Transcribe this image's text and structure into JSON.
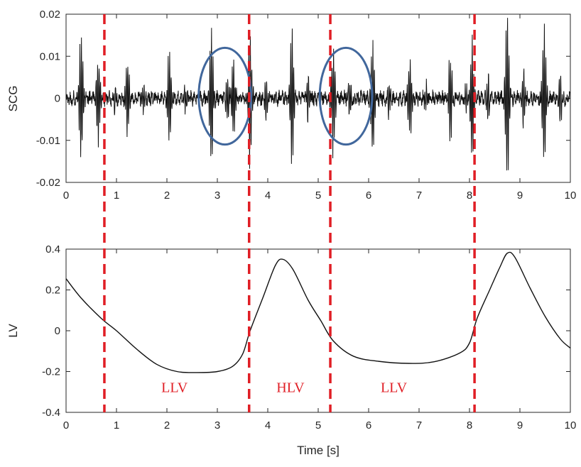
{
  "chart_data": [
    {
      "type": "line",
      "ylabel": "SCG",
      "xlabel": "",
      "xlim": [
        0,
        10
      ],
      "ylim": [
        -0.02,
        0.02
      ],
      "x_ticks": [
        "0",
        "1",
        "2",
        "3",
        "4",
        "5",
        "6",
        "7",
        "8",
        "9",
        "10"
      ],
      "y_ticks": [
        "-0.02",
        "-0.01",
        "0",
        "0.01",
        "0.02"
      ],
      "line_color": "#111111",
      "grid": false,
      "legend": "none",
      "beats": [
        {
          "t": 0.3,
          "amp": 0.015
        },
        {
          "t": 0.65,
          "amp": 0.007
        },
        {
          "t": 1.22,
          "amp": 0.009
        },
        {
          "t": 2.05,
          "amp": 0.011
        },
        {
          "t": 2.88,
          "amp": 0.016
        },
        {
          "t": 3.32,
          "amp": 0.01
        },
        {
          "t": 3.65,
          "amp": 0.016
        },
        {
          "t": 4.48,
          "amp": 0.017
        },
        {
          "t": 5.3,
          "amp": 0.013
        },
        {
          "t": 6.08,
          "amp": 0.013
        },
        {
          "t": 6.82,
          "amp": 0.009
        },
        {
          "t": 7.62,
          "amp": 0.01
        },
        {
          "t": 8.05,
          "amp": 0.014
        },
        {
          "t": 8.75,
          "amp": 0.021
        },
        {
          "t": 9.48,
          "amp": 0.017
        }
      ],
      "noise_amp": 0.0014,
      "highlight_ellipses": [
        {
          "cx": 3.15,
          "cy": 0.0005,
          "rx": 0.52,
          "ry": 0.0115
        },
        {
          "cx": 5.55,
          "cy": 0.0005,
          "rx": 0.52,
          "ry": 0.0115
        }
      ],
      "ellipse_color": "#41679c"
    },
    {
      "type": "line",
      "ylabel": "LV",
      "xlabel": "Time [s]",
      "xlim": [
        0,
        10
      ],
      "ylim": [
        -0.4,
        0.4
      ],
      "x_ticks": [
        "0",
        "1",
        "2",
        "3",
        "4",
        "5",
        "6",
        "7",
        "8",
        "9",
        "10"
      ],
      "y_ticks": [
        "-0.4",
        "-0.2",
        "0",
        "0.2",
        "0.4"
      ],
      "line_color": "#111111",
      "grid": false,
      "legend": "none",
      "x": [
        0.0,
        0.3,
        0.7,
        1.0,
        1.4,
        1.8,
        2.2,
        2.6,
        3.0,
        3.3,
        3.5,
        3.65,
        3.9,
        4.15,
        4.3,
        4.5,
        4.8,
        5.05,
        5.3,
        5.7,
        6.2,
        6.8,
        7.3,
        7.8,
        8.0,
        8.15,
        8.4,
        8.6,
        8.75,
        8.9,
        9.2,
        9.5,
        9.8,
        10.0
      ],
      "y": [
        0.255,
        0.16,
        0.06,
        0.0,
        -0.09,
        -0.165,
        -0.2,
        -0.205,
        -0.2,
        -0.175,
        -0.115,
        0.0,
        0.16,
        0.32,
        0.35,
        0.3,
        0.15,
        0.05,
        -0.05,
        -0.125,
        -0.15,
        -0.16,
        -0.152,
        -0.11,
        -0.06,
        0.06,
        0.2,
        0.31,
        0.38,
        0.36,
        0.21,
        0.07,
        -0.04,
        -0.085
      ]
    }
  ],
  "separators": {
    "x": [
      0.76,
      3.63,
      5.24,
      8.1
    ],
    "color": "#e01e25"
  },
  "regions": [
    {
      "label": "LLV",
      "x": 2.15,
      "y": -0.3
    },
    {
      "label": "HLV",
      "x": 4.45,
      "y": -0.3
    },
    {
      "label": "LLV",
      "x": 6.5,
      "y": -0.3
    }
  ],
  "region_color": "#e01e25"
}
